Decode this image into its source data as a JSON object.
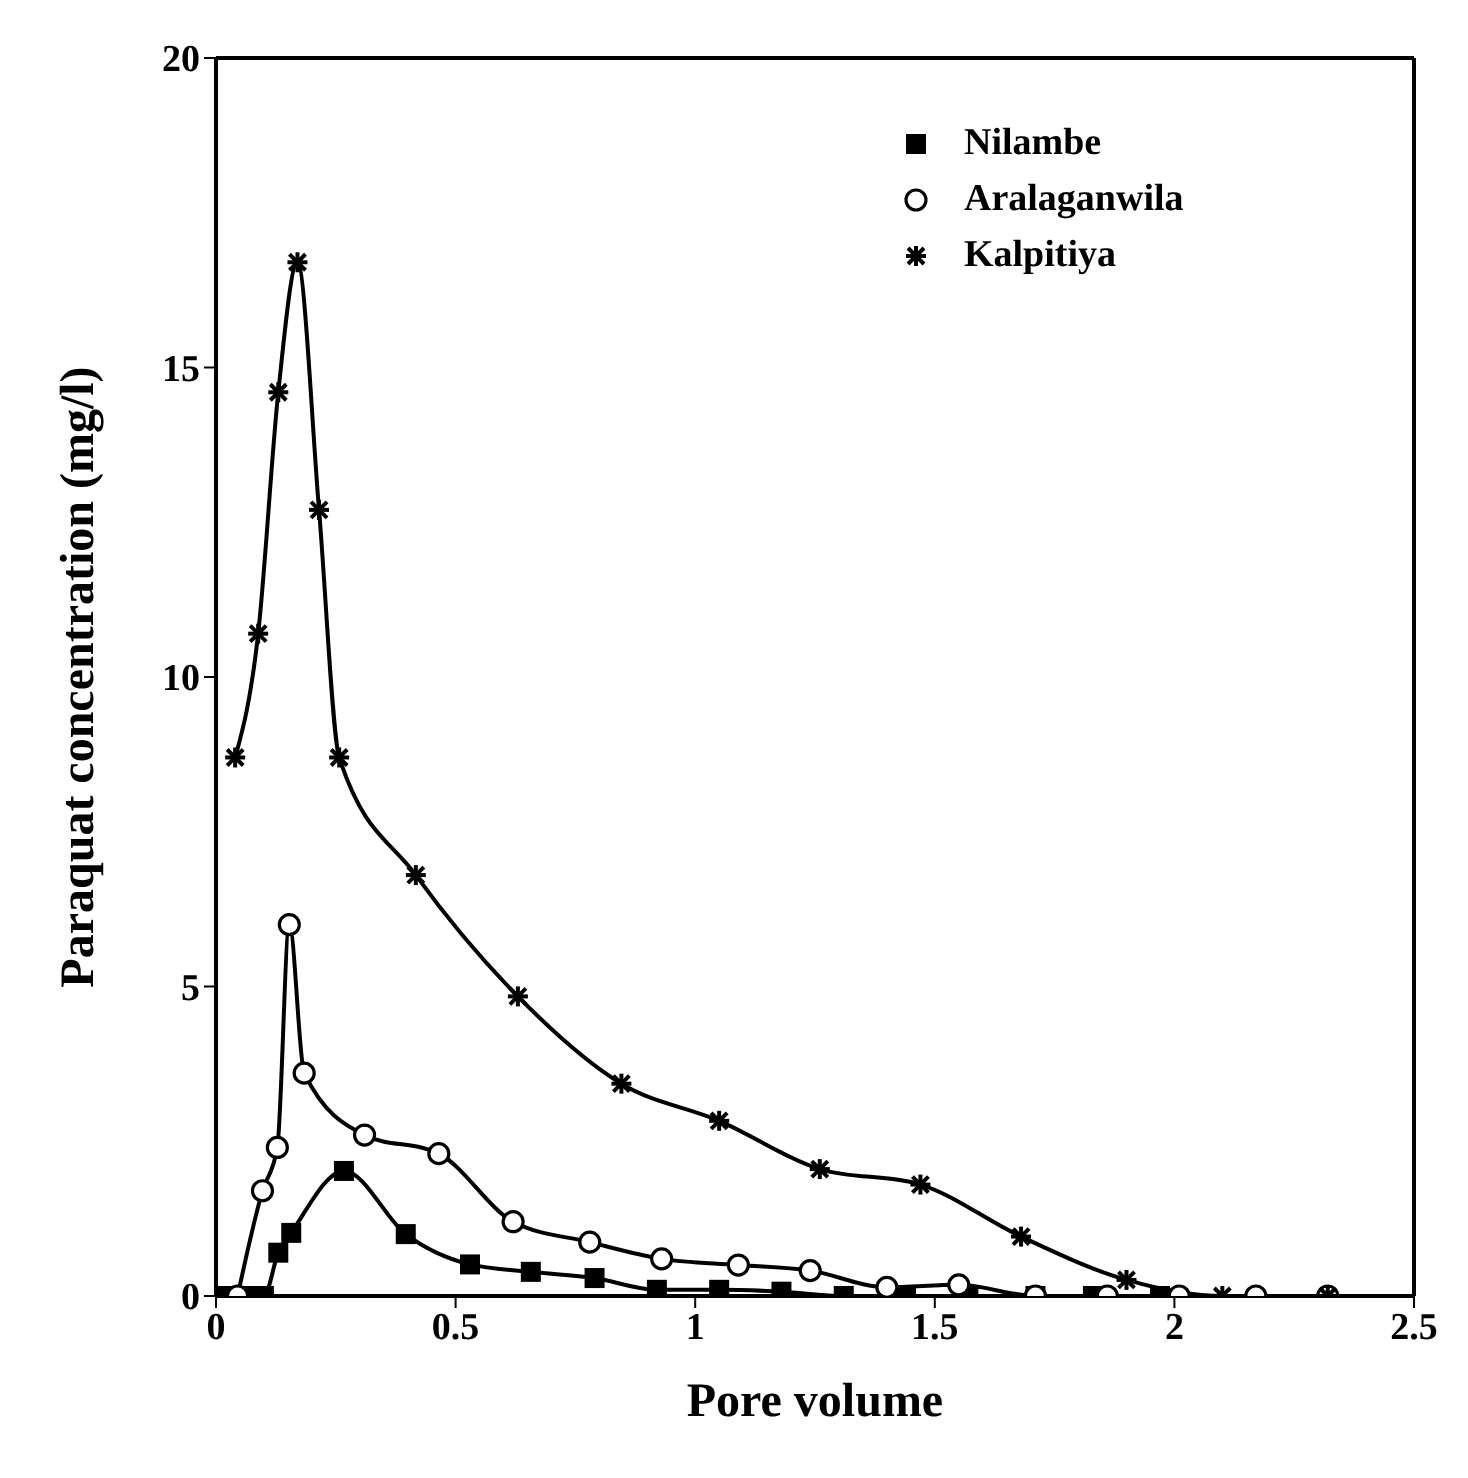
{
  "chart_data": {
    "type": "line",
    "xlabel": "Pore volume",
    "ylabel": "Paraquat concentration (mg/l)",
    "xlim": [
      0,
      2.5
    ],
    "xticks": [
      0,
      0.5,
      1,
      1.5,
      2,
      2.5
    ],
    "ylim": [
      0,
      20
    ],
    "yticks": [
      0,
      5,
      10,
      15,
      20
    ],
    "legend": "top right",
    "series": [
      {
        "name": "Nilambe",
        "color": "#000000",
        "marker": "square",
        "x": [
          0.02,
          0.06,
          0.1,
          0.13,
          0.157,
          0.267,
          0.396,
          0.53,
          0.657,
          0.79,
          0.92,
          1.05,
          1.18,
          1.31,
          1.44,
          1.57,
          1.71,
          1.83,
          1.97
        ],
        "values": [
          0,
          0,
          0,
          0.7,
          1.02,
          2.02,
          1.0,
          0.51,
          0.39,
          0.29,
          0.1,
          0.1,
          0.07,
          0,
          0,
          0,
          0,
          0,
          0
        ]
      },
      {
        "name": "Aralaganwila",
        "color": "#000000",
        "marker": "circle",
        "x": [
          0.045,
          0.097,
          0.128,
          0.153,
          0.184,
          0.31,
          0.465,
          0.62,
          0.78,
          0.93,
          1.09,
          1.24,
          1.4,
          1.55,
          1.71,
          1.86,
          2.01,
          2.17,
          2.32
        ],
        "values": [
          0,
          1.7,
          2.4,
          6.0,
          3.6,
          2.6,
          2.3,
          1.2,
          0.87,
          0.6,
          0.5,
          0.41,
          0.14,
          0.18,
          0,
          0,
          0,
          0,
          0
        ]
      },
      {
        "name": "Kalpitiya",
        "color": "#000000",
        "marker": "cross",
        "x": [
          0.04,
          0.088,
          0.13,
          0.17,
          0.215,
          0.257,
          0.417,
          0.63,
          0.846,
          1.05,
          1.26,
          1.47,
          1.68,
          1.9,
          2.1,
          2.32
        ],
        "values": [
          8.7,
          10.7,
          14.6,
          16.7,
          12.7,
          8.7,
          6.8,
          4.84,
          3.43,
          2.83,
          2.05,
          1.8,
          0.96,
          0.26,
          0,
          0
        ]
      }
    ]
  }
}
